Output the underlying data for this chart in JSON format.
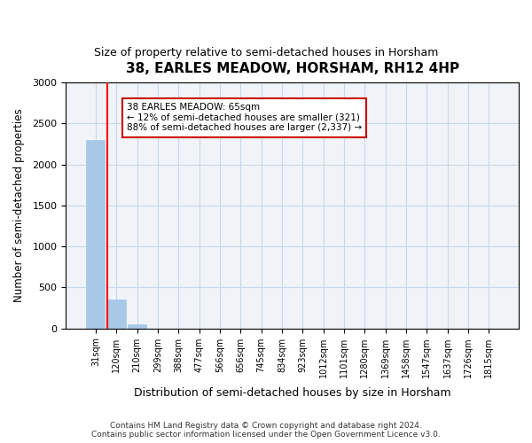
{
  "title": "38, EARLES MEADOW, HORSHAM, RH12 4HP",
  "subtitle": "Size of property relative to semi-detached houses in Horsham",
  "xlabel": "Distribution of semi-detached houses by size in Horsham",
  "ylabel": "Number of semi-detached properties",
  "bar_values": [
    2300,
    350,
    50,
    0,
    0,
    0,
    0,
    0,
    0,
    0,
    0,
    0,
    0,
    0,
    0,
    0,
    0,
    0,
    0,
    0
  ],
  "bar_color": "#a8c8e8",
  "bar_edge_color": "#a8c8e8",
  "x_labels": [
    "31sqm",
    "120sqm",
    "210sqm",
    "299sqm",
    "388sqm",
    "477sqm",
    "566sqm",
    "656sqm",
    "745sqm",
    "834sqm",
    "923sqm",
    "1012sqm",
    "1101sqm",
    "1280sqm",
    "1369sqm",
    "1458sqm",
    "1547sqm",
    "1637sqm",
    "1726sqm",
    "1815sqm"
  ],
  "ylim": [
    0,
    3000
  ],
  "yticks": [
    0,
    500,
    1000,
    1500,
    2000,
    2500,
    3000
  ],
  "red_line_x": 1,
  "annotation_text": "38 EARLES MEADOW: 65sqm\n← 12% of semi-detached houses are smaller (321)\n88% of semi-detached houses are larger (2,337) →",
  "annotation_box_color": "#cc0000",
  "grid_color": "#c8d8e8",
  "background_color": "#f0f4f8",
  "footnote": "Contains HM Land Registry data © Crown copyright and database right 2024.\nContains public sector information licensed under the Open Government Licence v3.0."
}
